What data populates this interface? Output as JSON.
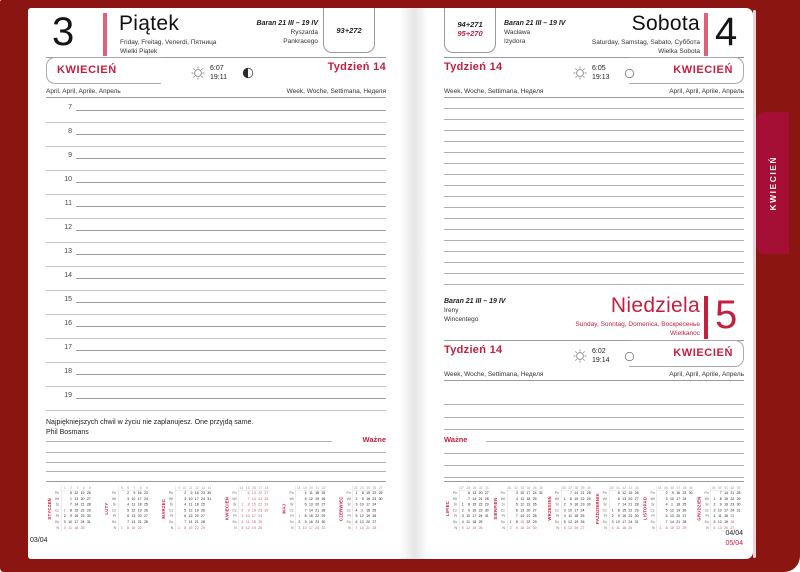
{
  "colors": {
    "accent": "#c41f3f",
    "day_bar": "#e0607c",
    "cover": "#8b1510",
    "tab": "#a60f35",
    "mini_cal_red": "#cc5570",
    "page": "#ffffff"
  },
  "cover": {
    "tab_label": "KWIECIEŃ"
  },
  "footer": {
    "left_page_no": "03/04",
    "right_page_no_top": "04/04",
    "right_page_no_bottom": "05/04"
  },
  "left_page": {
    "day_number": "3",
    "day_name": "Piątek",
    "day_langs": "Friday, Freitag, Venerdi, Пятница",
    "day_note": "Wielki Piątek",
    "zodiac": "Baran 21 III – 19 IV",
    "namedays": [
      "Ryszarda",
      "Pankracego"
    ],
    "day_counter": "93+272",
    "month_name": "KWIECIEŃ",
    "month_langs": "April, April, Aprile, Апрель",
    "week_label": "Tydzień 14",
    "week_langs": "Week, Woche, Settimana, Неделя",
    "sunrise": "6:07",
    "sunset": "19:11",
    "hours": [
      "7",
      "8",
      "9",
      "10",
      "11",
      "12",
      "13",
      "14",
      "15",
      "16",
      "17",
      "18",
      "19"
    ],
    "quote": "Najpiękniejszych chwil w życiu nie zaplanujesz. One przyjdą same.",
    "quote_author": "Phil Bosmans",
    "important_label": "Ważne"
  },
  "right_page": {
    "saturday": {
      "day_number": "4",
      "day_name": "Sobota",
      "day_langs": "Saturday, Samstag, Sabato, Суббота",
      "day_note": "Wielka Sobota",
      "zodiac": "Baran 21 III – 19 IV",
      "namedays": [
        "Wacława",
        "Izydora"
      ],
      "day_counter_top": "94+271",
      "day_counter_bottom": "95+270",
      "month_name": "KWIECIEŃ",
      "month_langs": "April, April, Aprile, Апрель",
      "week_label": "Tydzień 14",
      "week_langs": "Week, Woche, Settimana, Неделя",
      "sunrise": "6:05",
      "sunset": "19:13"
    },
    "sunday": {
      "day_number": "5",
      "day_name": "Niedziela",
      "day_langs": "Sunday, Sonntag, Domenica, Воскресенье",
      "day_note": "Wielkanoc",
      "zodiac": "Baran 21 III – 19 IV",
      "namedays": [
        "Ireny",
        "Wincentego"
      ],
      "month_name": "KWIECIEŃ",
      "month_langs": "April, April, Aprile, Апрель",
      "week_label": "Tydzień 14",
      "week_langs": "Week, Woche, Settimana, Неделя",
      "sunrise": "6:02",
      "sunset": "19:14"
    },
    "important_label": "Ważne"
  },
  "mini_calendars": {
    "day_labels": [
      "Pn",
      "Wt",
      "Śr",
      "Cz",
      "Pt",
      "So",
      "N"
    ],
    "left": [
      {
        "name": "STYCZEŃ",
        "weeks": [
          "1",
          "2",
          "3",
          "4",
          "5"
        ],
        "red": [
          "1",
          "6"
        ],
        "current": false,
        "rows": [
          [
            "",
            "5",
            "12",
            "19",
            "26"
          ],
          [
            "",
            "6",
            "13",
            "20",
            "27"
          ],
          [
            "",
            "7",
            "14",
            "21",
            "28"
          ],
          [
            "1",
            "8",
            "15",
            "22",
            "29"
          ],
          [
            "2",
            "9",
            "16",
            "23",
            "30"
          ],
          [
            "3",
            "10",
            "17",
            "24",
            "31"
          ],
          [
            "4",
            "11",
            "18",
            "25",
            ""
          ]
        ]
      },
      {
        "name": "LUTY",
        "weeks": [
          "5",
          "6",
          "7",
          "8",
          "9"
        ],
        "red": [],
        "current": false,
        "rows": [
          [
            "",
            "2",
            "9",
            "16",
            "23"
          ],
          [
            "",
            "3",
            "10",
            "17",
            "24"
          ],
          [
            "",
            "4",
            "11",
            "18",
            "25"
          ],
          [
            "",
            "5",
            "12",
            "19",
            "26"
          ],
          [
            "",
            "6",
            "13",
            "20",
            "27"
          ],
          [
            "",
            "7",
            "14",
            "21",
            "28"
          ],
          [
            "1",
            "8",
            "15",
            "22",
            ""
          ]
        ]
      },
      {
        "name": "MARZEC",
        "weeks": [
          "9",
          "10",
          "11",
          "12",
          "13",
          "14"
        ],
        "red": [],
        "current": false,
        "rows": [
          [
            "",
            "2",
            "9",
            "16",
            "23",
            "30"
          ],
          [
            "",
            "3",
            "10",
            "17",
            "24",
            "31"
          ],
          [
            "",
            "4",
            "11",
            "18",
            "25",
            ""
          ],
          [
            "",
            "5",
            "12",
            "19",
            "26",
            ""
          ],
          [
            "",
            "6",
            "13",
            "20",
            "27",
            ""
          ],
          [
            "",
            "7",
            "14",
            "21",
            "28",
            ""
          ],
          [
            "1",
            "8",
            "15",
            "22",
            "29",
            ""
          ]
        ]
      },
      {
        "name": "KWIECIEŃ",
        "weeks": [
          "14",
          "15",
          "16",
          "17",
          "18"
        ],
        "red": [
          "13"
        ],
        "current": true,
        "rows": [
          [
            "",
            "6",
            "13",
            "20",
            "27"
          ],
          [
            "",
            "7",
            "14",
            "21",
            "28"
          ],
          [
            "1",
            "8",
            "15",
            "22",
            "29"
          ],
          [
            "2",
            "9",
            "16",
            "23",
            "30"
          ],
          [
            "3",
            "10",
            "17",
            "24",
            ""
          ],
          [
            "4",
            "11",
            "18",
            "25",
            ""
          ],
          [
            "5",
            "12",
            "19",
            "26",
            ""
          ]
        ]
      },
      {
        "name": "MAJ",
        "weeks": [
          "18",
          "19",
          "20",
          "21",
          "22"
        ],
        "red": [
          "1",
          "3"
        ],
        "current": false,
        "rows": [
          [
            "",
            "4",
            "11",
            "18",
            "25"
          ],
          [
            "",
            "5",
            "12",
            "19",
            "26"
          ],
          [
            "",
            "6",
            "13",
            "20",
            "27"
          ],
          [
            "",
            "7",
            "14",
            "21",
            "28"
          ],
          [
            "1",
            "8",
            "15",
            "22",
            "29"
          ],
          [
            "2",
            "9",
            "16",
            "23",
            "30"
          ],
          [
            "3",
            "10",
            "17",
            "24",
            "31"
          ]
        ]
      },
      {
        "name": "CZERWIEC",
        "weeks": [
          "23",
          "24",
          "25",
          "26",
          "27"
        ],
        "red": [
          "11"
        ],
        "current": false,
        "rows": [
          [
            "1",
            "8",
            "15",
            "22",
            "29"
          ],
          [
            "2",
            "9",
            "16",
            "23",
            "30"
          ],
          [
            "3",
            "10",
            "17",
            "24",
            ""
          ],
          [
            "4",
            "11",
            "18",
            "25",
            ""
          ],
          [
            "5",
            "12",
            "19",
            "26",
            ""
          ],
          [
            "6",
            "13",
            "20",
            "27",
            ""
          ],
          [
            "7",
            "14",
            "21",
            "28",
            ""
          ]
        ]
      }
    ],
    "right": [
      {
        "name": "LIPIEC",
        "weeks": [
          "27",
          "28",
          "29",
          "30",
          "31"
        ],
        "red": [],
        "current": false,
        "rows": [
          [
            "",
            "6",
            "13",
            "20",
            "27"
          ],
          [
            "",
            "7",
            "14",
            "21",
            "28"
          ],
          [
            "1",
            "8",
            "15",
            "22",
            "29"
          ],
          [
            "2",
            "9",
            "16",
            "23",
            "30"
          ],
          [
            "3",
            "10",
            "17",
            "24",
            "31"
          ],
          [
            "4",
            "11",
            "18",
            "25",
            ""
          ],
          [
            "5",
            "12",
            "19",
            "26",
            ""
          ]
        ]
      },
      {
        "name": "SIERPIEŃ",
        "weeks": [
          "31",
          "32",
          "33",
          "34",
          "35",
          "36"
        ],
        "red": [
          "15"
        ],
        "current": false,
        "rows": [
          [
            "",
            "3",
            "10",
            "17",
            "24",
            "31"
          ],
          [
            "",
            "4",
            "11",
            "18",
            "25",
            ""
          ],
          [
            "",
            "5",
            "12",
            "19",
            "26",
            ""
          ],
          [
            "",
            "6",
            "13",
            "20",
            "27",
            ""
          ],
          [
            "",
            "7",
            "14",
            "21",
            "28",
            ""
          ],
          [
            "1",
            "8",
            "15",
            "22",
            "29",
            ""
          ],
          [
            "2",
            "9",
            "16",
            "23",
            "30",
            ""
          ]
        ]
      },
      {
        "name": "WRZESIEŃ",
        "weeks": [
          "36",
          "37",
          "38",
          "39",
          "40"
        ],
        "red": [],
        "current": false,
        "rows": [
          [
            "",
            "7",
            "14",
            "21",
            "28"
          ],
          [
            "1",
            "8",
            "15",
            "22",
            "29"
          ],
          [
            "2",
            "9",
            "16",
            "23",
            "30"
          ],
          [
            "3",
            "10",
            "17",
            "24",
            ""
          ],
          [
            "4",
            "11",
            "18",
            "25",
            ""
          ],
          [
            "5",
            "12",
            "19",
            "26",
            ""
          ],
          [
            "6",
            "13",
            "20",
            "27",
            ""
          ]
        ]
      },
      {
        "name": "PAŹDZIERNIK",
        "weeks": [
          "40",
          "41",
          "42",
          "43",
          "44"
        ],
        "red": [],
        "current": false,
        "rows": [
          [
            "",
            "5",
            "12",
            "19",
            "26"
          ],
          [
            "",
            "6",
            "13",
            "20",
            "27"
          ],
          [
            "",
            "7",
            "14",
            "21",
            "28"
          ],
          [
            "1",
            "8",
            "15",
            "22",
            "29"
          ],
          [
            "2",
            "9",
            "16",
            "23",
            "30"
          ],
          [
            "3",
            "10",
            "17",
            "24",
            "31"
          ],
          [
            "4",
            "11",
            "18",
            "25",
            ""
          ]
        ]
      },
      {
        "name": "LISTOPAD",
        "weeks": [
          "44",
          "45",
          "46",
          "47",
          "48",
          "49"
        ],
        "red": [
          "11"
        ],
        "current": false,
        "rows": [
          [
            "",
            "2",
            "9",
            "16",
            "23",
            "30"
          ],
          [
            "",
            "3",
            "10",
            "17",
            "24",
            ""
          ],
          [
            "",
            "4",
            "11",
            "18",
            "25",
            ""
          ],
          [
            "",
            "5",
            "12",
            "19",
            "26",
            ""
          ],
          [
            "",
            "6",
            "13",
            "20",
            "27",
            ""
          ],
          [
            "",
            "7",
            "14",
            "21",
            "28",
            ""
          ],
          [
            "1",
            "8",
            "15",
            "22",
            "29",
            ""
          ]
        ]
      },
      {
        "name": "GRUDZIEŃ",
        "weeks": [
          "49",
          "50",
          "51",
          "52",
          "53"
        ],
        "red": [
          "25",
          "26"
        ],
        "current": false,
        "rows": [
          [
            "",
            "7",
            "14",
            "21",
            "28"
          ],
          [
            "1",
            "8",
            "15",
            "22",
            "29"
          ],
          [
            "2",
            "9",
            "16",
            "23",
            "30"
          ],
          [
            "3",
            "10",
            "17",
            "24",
            "31"
          ],
          [
            "4",
            "11",
            "18",
            "25",
            ""
          ],
          [
            "5",
            "12",
            "19",
            "26",
            ""
          ],
          [
            "6",
            "13",
            "20",
            "27",
            ""
          ]
        ]
      }
    ]
  }
}
